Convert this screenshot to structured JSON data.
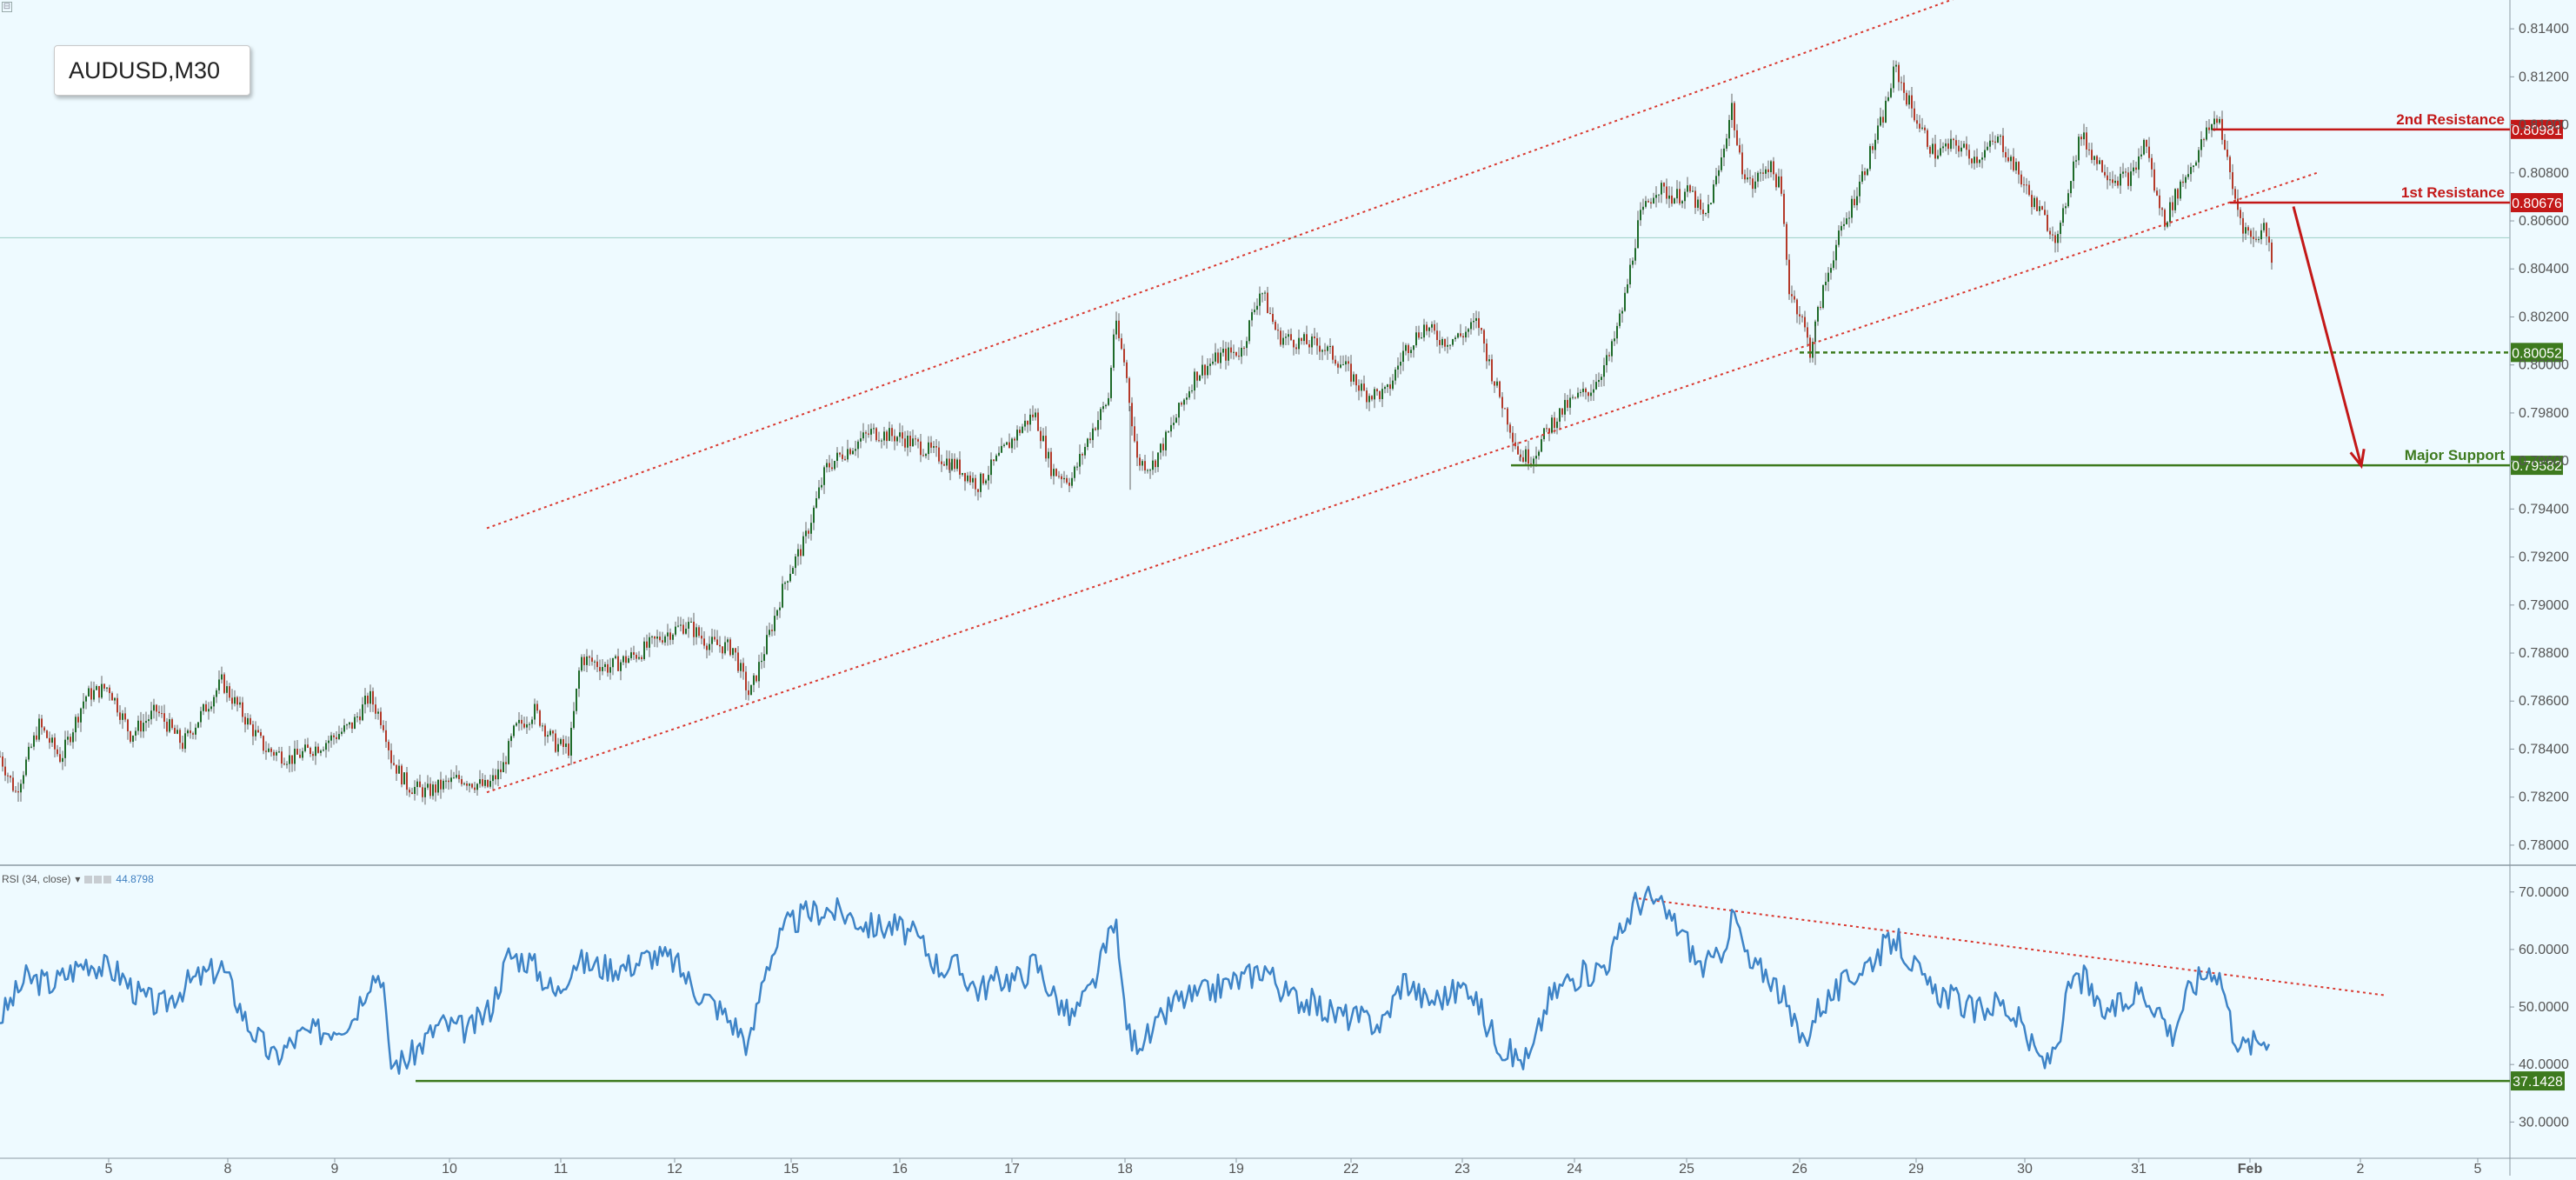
{
  "symbol": "AUDUSD,M30",
  "corner_button": "⊟",
  "rsi_header": {
    "label": "RSI (34, close)",
    "dropdown": "▾",
    "value": "44.8798"
  },
  "x_ticks": [
    {
      "label": "5",
      "i": 125
    },
    {
      "label": "8",
      "i": 262
    },
    {
      "label": "9",
      "i": 385
    },
    {
      "label": "10",
      "i": 517
    },
    {
      "label": "11",
      "i": 645
    },
    {
      "label": "12",
      "i": 776
    },
    {
      "label": "15",
      "i": 910
    },
    {
      "label": "16",
      "i": 1035
    },
    {
      "label": "17",
      "i": 1164
    },
    {
      "label": "18",
      "i": 1294
    },
    {
      "label": "19",
      "i": 1422
    },
    {
      "label": "22",
      "i": 1554
    },
    {
      "label": "23",
      "i": 1682
    },
    {
      "label": "24",
      "i": 1811
    },
    {
      "label": "25",
      "i": 1940
    },
    {
      "label": "26",
      "i": 2070
    },
    {
      "label": "29",
      "i": 2204
    },
    {
      "label": "30",
      "i": 2329
    },
    {
      "label": "31",
      "i": 2460
    },
    {
      "label": "Feb",
      "i": 2588,
      "bold": true
    },
    {
      "label": "2",
      "i": 2715
    },
    {
      "label": "5",
      "i": 2850
    }
  ],
  "chart_data": [
    {
      "type": "candlestick",
      "title": "AUDUSD,M30",
      "ylim": [
        0.7792,
        0.8152
      ],
      "y_ticks": [
        "0.81400",
        "0.81200",
        "0.81000",
        "0.80800",
        "0.80600",
        "0.80400",
        "0.80200",
        "0.80000",
        "0.79800",
        "0.79600",
        "0.79400",
        "0.79200",
        "0.79000",
        "0.78800",
        "0.78600",
        "0.78400",
        "0.78200",
        "0.78000"
      ],
      "colors": {
        "up": "#1f6b2a",
        "down": "#b43a2a",
        "wick": "#666666"
      },
      "price_path": [
        [
          0,
          0.7837
        ],
        [
          18,
          0.7822
        ],
        [
          45,
          0.785
        ],
        [
          70,
          0.7836
        ],
        [
          98,
          0.7862
        ],
        [
          125,
          0.7866
        ],
        [
          150,
          0.7846
        ],
        [
          180,
          0.7856
        ],
        [
          210,
          0.7842
        ],
        [
          255,
          0.7868
        ],
        [
          280,
          0.7854
        ],
        [
          305,
          0.784
        ],
        [
          335,
          0.7836
        ],
        [
          370,
          0.7842
        ],
        [
          405,
          0.785
        ],
        [
          425,
          0.7862
        ],
        [
          442,
          0.785
        ],
        [
          450,
          0.7836
        ],
        [
          468,
          0.7825
        ],
        [
          490,
          0.7822
        ],
        [
          530,
          0.7828
        ],
        [
          560,
          0.7824
        ],
        [
          578,
          0.7832
        ],
        [
          592,
          0.7848
        ],
        [
          615,
          0.7856
        ],
        [
          638,
          0.7842
        ],
        [
          655,
          0.784
        ],
        [
          668,
          0.7878
        ],
        [
          700,
          0.7874
        ],
        [
          735,
          0.788
        ],
        [
          765,
          0.7888
        ],
        [
          790,
          0.7892
        ],
        [
          815,
          0.7884
        ],
        [
          843,
          0.7882
        ],
        [
          862,
          0.7862
        ],
        [
          885,
          0.7888
        ],
        [
          905,
          0.7912
        ],
        [
          925,
          0.7926
        ],
        [
          950,
          0.7957
        ],
        [
          972,
          0.7964
        ],
        [
          1002,
          0.7972
        ],
        [
          1035,
          0.797
        ],
        [
          1070,
          0.7964
        ],
        [
          1100,
          0.7958
        ],
        [
          1125,
          0.795
        ],
        [
          1150,
          0.7962
        ],
        [
          1175,
          0.7974
        ],
        [
          1190,
          0.798
        ],
        [
          1210,
          0.7956
        ],
        [
          1232,
          0.7952
        ],
        [
          1255,
          0.7972
        ],
        [
          1275,
          0.7986
        ],
        [
          1282,
          0.8018
        ],
        [
          1294,
          0.8
        ],
        [
          1308,
          0.796
        ],
        [
          1325,
          0.7958
        ],
        [
          1345,
          0.7972
        ],
        [
          1375,
          0.7996
        ],
        [
          1405,
          0.8004
        ],
        [
          1428,
          0.8006
        ],
        [
          1450,
          0.8032
        ],
        [
          1470,
          0.8012
        ],
        [
          1490,
          0.801
        ],
        [
          1520,
          0.8008
        ],
        [
          1545,
          0.8
        ],
        [
          1570,
          0.7988
        ],
        [
          1595,
          0.7988
        ],
        [
          1615,
          0.8006
        ],
        [
          1638,
          0.8016
        ],
        [
          1660,
          0.801
        ],
        [
          1680,
          0.8012
        ],
        [
          1700,
          0.8018
        ],
        [
          1718,
          0.7994
        ],
        [
          1732,
          0.798
        ],
        [
          1748,
          0.7962
        ],
        [
          1763,
          0.7962
        ],
        [
          1785,
          0.7976
        ],
        [
          1805,
          0.7984
        ],
        [
          1830,
          0.799
        ],
        [
          1852,
          0.8004
        ],
        [
          1868,
          0.8026
        ],
        [
          1885,
          0.806
        ],
        [
          1905,
          0.8074
        ],
        [
          1925,
          0.807
        ],
        [
          1945,
          0.8072
        ],
        [
          1960,
          0.806
        ],
        [
          1978,
          0.8082
        ],
        [
          1992,
          0.8108
        ],
        [
          2000,
          0.8086
        ],
        [
          2015,
          0.8074
        ],
        [
          2033,
          0.8084
        ],
        [
          2048,
          0.8074
        ],
        [
          2058,
          0.8032
        ],
        [
          2072,
          0.802
        ],
        [
          2082,
          0.8006
        ],
        [
          2095,
          0.8028
        ],
        [
          2110,
          0.8048
        ],
        [
          2125,
          0.8062
        ],
        [
          2145,
          0.8082
        ],
        [
          2165,
          0.8102
        ],
        [
          2180,
          0.8124
        ],
        [
          2190,
          0.8114
        ],
        [
          2210,
          0.8098
        ],
        [
          2225,
          0.8088
        ],
        [
          2250,
          0.8092
        ],
        [
          2272,
          0.8086
        ],
        [
          2300,
          0.8094
        ],
        [
          2318,
          0.8082
        ],
        [
          2335,
          0.807
        ],
        [
          2353,
          0.806
        ],
        [
          2368,
          0.8052
        ],
        [
          2380,
          0.8076
        ],
        [
          2393,
          0.8096
        ],
        [
          2410,
          0.8086
        ],
        [
          2430,
          0.8078
        ],
        [
          2452,
          0.8078
        ],
        [
          2468,
          0.8094
        ],
        [
          2480,
          0.807
        ],
        [
          2490,
          0.806
        ],
        [
          2508,
          0.8075
        ],
        [
          2525,
          0.8086
        ],
        [
          2540,
          0.8098
        ],
        [
          2552,
          0.8104
        ],
        [
          2560,
          0.8088
        ],
        [
          2570,
          0.807
        ],
        [
          2580,
          0.8058
        ],
        [
          2592,
          0.8052
        ],
        [
          2605,
          0.8058
        ],
        [
          2615,
          0.8042
        ]
      ],
      "candle_every": 3,
      "extra_lows": [
        [
          1093,
          0.7952
        ],
        [
          1300,
          0.7948
        ],
        [
          2088,
          0.8
        ],
        [
          1748,
          0.796
        ]
      ],
      "channel": {
        "upper": [
          [
            560,
            0.7932
          ],
          [
            2290,
            0.8158
          ]
        ],
        "lower": [
          [
            560,
            0.7822
          ],
          [
            2665,
            0.808
          ]
        ],
        "color": "#d9382f"
      },
      "levels": [
        {
          "name": "2nd Resistance",
          "value": "0.80981",
          "y": 0.80981,
          "from_i": 2545,
          "color": "#c31818",
          "style": "solid"
        },
        {
          "name": "1st Resistance",
          "value": "0.80676",
          "y": 0.80676,
          "from_i": 2565,
          "color": "#c31818",
          "style": "solid"
        },
        {
          "name": "",
          "value": "0.80052",
          "y": 0.80052,
          "from_i": 2070,
          "color": "#3d7a1e",
          "style": "dashed"
        },
        {
          "name": "Major Support",
          "value": "0.79582",
          "y": 0.79582,
          "from_i": 1738,
          "color": "#3d7a1e",
          "style": "solid"
        }
      ],
      "current_price_line": 0.8053,
      "projection_arrow": {
        "from": [
          2638,
          0.8066
        ],
        "to": [
          2716,
          0.7958
        ],
        "color": "#c31818"
      }
    },
    {
      "type": "line",
      "title": "RSI (34, close)",
      "ylim": [
        24,
        74.5
      ],
      "y_ticks": [
        "70.0000",
        "60.0000",
        "50.0000",
        "40.0000",
        "30.0000"
      ],
      "series": [
        {
          "name": "RSI",
          "color": "#3e84c7",
          "values": [
            [
              0,
              48
            ],
            [
              30,
              55
            ],
            [
              60,
              54
            ],
            [
              100,
              58
            ],
            [
              135,
              56
            ],
            [
              160,
              52
            ],
            [
              185,
              50
            ],
            [
              215,
              54
            ],
            [
              255,
              57
            ],
            [
              285,
              47
            ],
            [
              315,
              41
            ],
            [
              345,
              45
            ],
            [
              375,
              46
            ],
            [
              405,
              48
            ],
            [
              425,
              55
            ],
            [
              440,
              56
            ],
            [
              448,
              40
            ],
            [
              470,
              41
            ],
            [
              505,
              47
            ],
            [
              540,
              46
            ],
            [
              565,
              50
            ],
            [
              585,
              59
            ],
            [
              610,
              58
            ],
            [
              640,
              52
            ],
            [
              660,
              58
            ],
            [
              690,
              57
            ],
            [
              720,
              57
            ],
            [
              750,
              59
            ],
            [
              775,
              58
            ],
            [
              800,
              53
            ],
            [
              825,
              50
            ],
            [
              850,
              46
            ],
            [
              862,
              43
            ],
            [
              880,
              57
            ],
            [
              905,
              64
            ],
            [
              925,
              66
            ],
            [
              950,
              67
            ],
            [
              975,
              66
            ],
            [
              1002,
              64
            ],
            [
              1030,
              64
            ],
            [
              1055,
              62
            ],
            [
              1080,
              57
            ],
            [
              1100,
              57
            ],
            [
              1125,
              53
            ],
            [
              1150,
              55
            ],
            [
              1175,
              55
            ],
            [
              1190,
              58
            ],
            [
              1212,
              52
            ],
            [
              1232,
              48
            ],
            [
              1255,
              53
            ],
            [
              1272,
              60
            ],
            [
              1282,
              66
            ],
            [
              1290,
              54
            ],
            [
              1300,
              44
            ],
            [
              1325,
              45
            ],
            [
              1350,
              51
            ],
            [
              1380,
              52
            ],
            [
              1410,
              54
            ],
            [
              1432,
              55
            ],
            [
              1455,
              57
            ],
            [
              1480,
              52
            ],
            [
              1505,
              51
            ],
            [
              1530,
              49
            ],
            [
              1560,
              48
            ],
            [
              1590,
              47
            ],
            [
              1615,
              55
            ],
            [
              1640,
              51
            ],
            [
              1665,
              52
            ],
            [
              1690,
              54
            ],
            [
              1710,
              47
            ],
            [
              1728,
              43
            ],
            [
              1745,
              41
            ],
            [
              1760,
              41
            ],
            [
              1780,
              51
            ],
            [
              1805,
              55
            ],
            [
              1830,
              56
            ],
            [
              1850,
              58
            ],
            [
              1865,
              63
            ],
            [
              1880,
              68
            ],
            [
              1898,
              69
            ],
            [
              1918,
              66
            ],
            [
              1935,
              63
            ],
            [
              1955,
              57
            ],
            [
              1975,
              58
            ],
            [
              1995,
              66
            ],
            [
              2012,
              57
            ],
            [
              2033,
              56
            ],
            [
              2050,
              52
            ],
            [
              2062,
              47
            ],
            [
              2075,
              44
            ],
            [
              2092,
              50
            ],
            [
              2115,
              53
            ],
            [
              2135,
              56
            ],
            [
              2158,
              59
            ],
            [
              2180,
              62
            ],
            [
              2198,
              58
            ],
            [
              2218,
              53
            ],
            [
              2242,
              52
            ],
            [
              2270,
              49
            ],
            [
              2300,
              51
            ],
            [
              2325,
              47
            ],
            [
              2340,
              42
            ],
            [
              2355,
              40
            ],
            [
              2368,
              45
            ],
            [
              2382,
              54
            ],
            [
              2398,
              55
            ],
            [
              2415,
              49
            ],
            [
              2440,
              50
            ],
            [
              2460,
              53
            ],
            [
              2482,
              50
            ],
            [
              2498,
              45
            ],
            [
              2515,
              52
            ],
            [
              2530,
              55
            ],
            [
              2545,
              57
            ],
            [
              2555,
              55
            ],
            [
              2568,
              46
            ],
            [
              2580,
              43
            ],
            [
              2596,
              44
            ],
            [
              2610,
              45
            ],
            [
              2612,
              41
            ]
          ]
        }
      ],
      "trend_line": {
        "from": [
          1878,
          69
        ],
        "to": [
          2745,
          52
        ],
        "color": "#d9382f"
      },
      "support_line": {
        "value": "37.1428",
        "y": 37.1428,
        "from_i": 478,
        "color": "#3d7a1e"
      }
    }
  ]
}
